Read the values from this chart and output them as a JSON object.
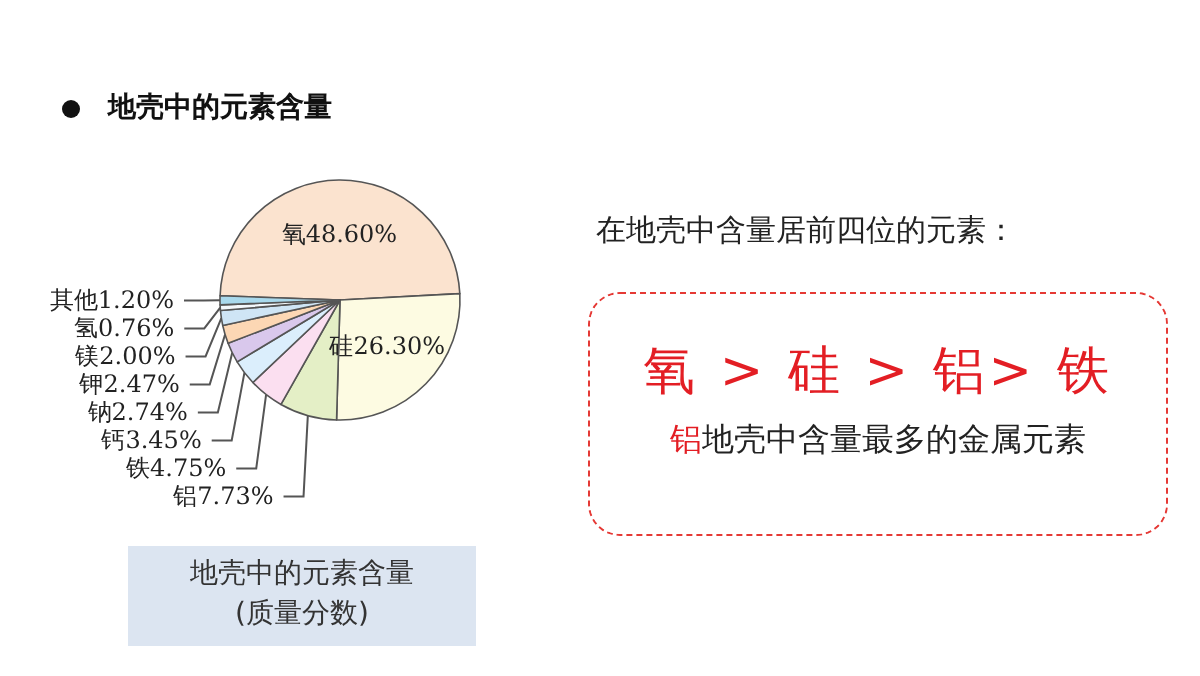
{
  "chart_data": {
    "type": "pie",
    "title": "地壳中的元素含量",
    "categories": [
      "氧",
      "硅",
      "铝",
      "铁",
      "钙",
      "钠",
      "钾",
      "镁",
      "氢",
      "其他"
    ],
    "values": [
      48.6,
      26.3,
      7.73,
      4.75,
      3.45,
      2.74,
      2.47,
      2.0,
      0.76,
      1.2
    ],
    "value_labels": [
      "48.60%",
      "26.30%",
      "7.73%",
      "4.75%",
      "3.45%",
      "2.74%",
      "2.47%",
      "2.00%",
      "0.76%",
      "1.20%"
    ],
    "colors": [
      "#fbe3cf",
      "#fdfbe2",
      "#e4efc6",
      "#fbdff0",
      "#dbeefc",
      "#d9c8ec",
      "#fcd7b4",
      "#cfe5f5",
      "#f4f8fb",
      "#a9d9ec"
    ],
    "legend": false,
    "annotations": [
      "在地壳中含量居前四位的元素：",
      "氧 > 硅 > 铝> 铁",
      "铝地壳中含量最多的金属元素",
      "地壳中的元素含量",
      "(质量分数)"
    ]
  }
}
